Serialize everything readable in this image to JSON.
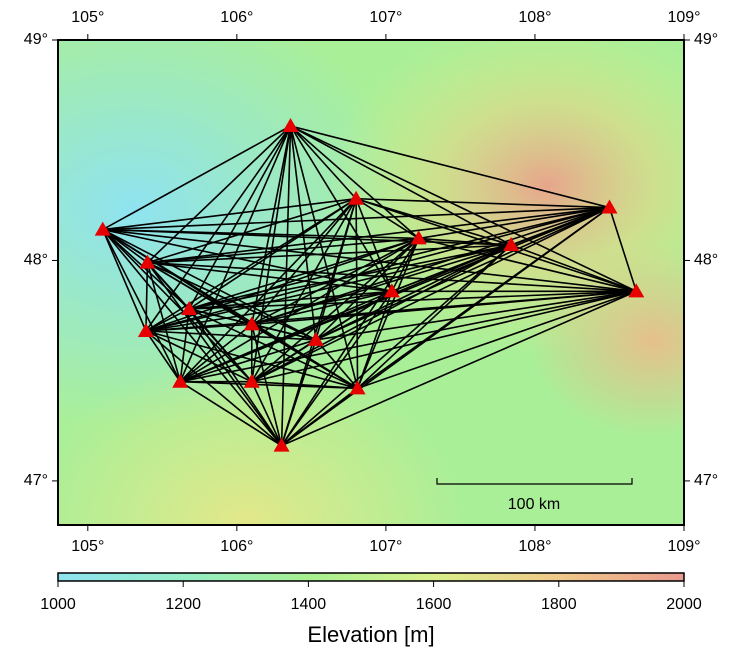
{
  "map": {
    "xlim": [
      104.8,
      109.0
    ],
    "ylim": [
      46.8,
      49.0
    ],
    "xticks": [
      {
        "value": 105,
        "label": "105°"
      },
      {
        "value": 106,
        "label": "106°"
      },
      {
        "value": 107,
        "label": "107°"
      },
      {
        "value": 108,
        "label": "108°"
      },
      {
        "value": 109,
        "label": "109°"
      }
    ],
    "yticks": [
      {
        "value": 47,
        "label": "47°"
      },
      {
        "value": 48,
        "label": "48°"
      },
      {
        "value": 49,
        "label": "49°"
      }
    ],
    "station_color": "#e60000",
    "stations": [
      {
        "lon": 106.36,
        "lat": 48.61
      },
      {
        "lon": 105.1,
        "lat": 48.14
      },
      {
        "lon": 105.4,
        "lat": 47.99
      },
      {
        "lon": 105.39,
        "lat": 47.68
      },
      {
        "lon": 105.68,
        "lat": 47.78
      },
      {
        "lon": 105.62,
        "lat": 47.45
      },
      {
        "lon": 106.1,
        "lat": 47.71
      },
      {
        "lon": 106.1,
        "lat": 47.45
      },
      {
        "lon": 106.3,
        "lat": 47.16
      },
      {
        "lon": 106.53,
        "lat": 47.64
      },
      {
        "lon": 106.8,
        "lat": 48.28
      },
      {
        "lon": 106.81,
        "lat": 47.42
      },
      {
        "lon": 107.04,
        "lat": 47.86
      },
      {
        "lon": 107.22,
        "lat": 48.1
      },
      {
        "lon": 107.84,
        "lat": 48.07
      },
      {
        "lon": 108.5,
        "lat": 48.24
      },
      {
        "lon": 108.68,
        "lat": 47.86
      }
    ],
    "scale_bar": "100 km",
    "colorbar": {
      "label": "Elevation [m]",
      "lim": [
        1000,
        2000
      ],
      "ticks": [
        1000,
        1200,
        1400,
        1600,
        1800,
        2000
      ]
    }
  }
}
